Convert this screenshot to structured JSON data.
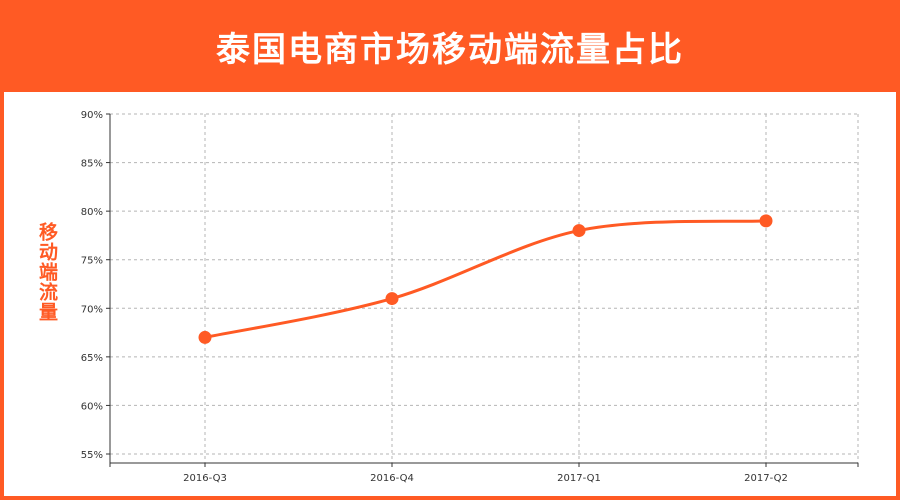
{
  "header": {
    "title": "泰国电商市场移动端流量占比"
  },
  "colors": {
    "accent": "#ff5a24",
    "grid": "#b5b5b5",
    "axis": "#333333"
  },
  "chart_data": {
    "type": "line",
    "title": "泰国电商市场移动端流量占比",
    "xlabel": "",
    "ylabel": "移动端流量",
    "categories": [
      "2016-Q3",
      "2016-Q4",
      "2017-Q1",
      "2017-Q2"
    ],
    "series": [
      {
        "values": [
          67,
          71,
          78,
          79
        ]
      }
    ],
    "ylim": [
      55,
      90
    ],
    "yticks": [
      55,
      60,
      65,
      70,
      75,
      80,
      85,
      90
    ],
    "ytick_labels": [
      "55%",
      "60%",
      "65%",
      "70%",
      "75%",
      "80%",
      "85%",
      "90%"
    ],
    "grid": true,
    "smooth": true
  }
}
